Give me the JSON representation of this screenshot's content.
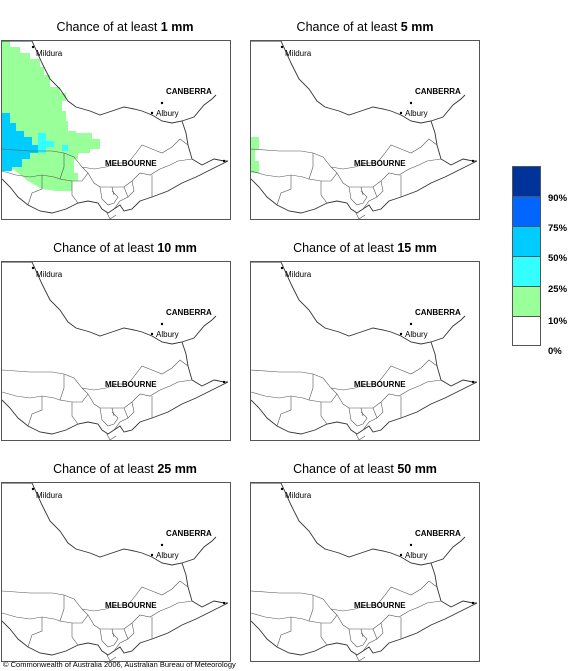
{
  "panels": [
    {
      "title_prefix": "Chance of at least ",
      "title_value": "1 mm",
      "places": {
        "mildura": "Mildura",
        "canberra": "CANBERRA",
        "albury": "Albury",
        "melbourne": "MELBOURNE"
      }
    },
    {
      "title_prefix": "Chance of at least ",
      "title_value": "5 mm",
      "places": {
        "mildura": "Mildura",
        "canberra": "CANBERRA",
        "albury": "Albury",
        "melbourne": "MELBOURNE"
      }
    },
    {
      "title_prefix": "Chance of at least ",
      "title_value": "10 mm",
      "places": {
        "mildura": "Mildura",
        "canberra": "CANBERRA",
        "albury": "Albury",
        "melbourne": "MELBOURNE"
      }
    },
    {
      "title_prefix": "Chance of at least ",
      "title_value": "15 mm",
      "places": {
        "mildura": "Mildura",
        "canberra": "CANBERRA",
        "albury": "Albury",
        "melbourne": "MELBOURNE"
      }
    },
    {
      "title_prefix": "Chance of at least ",
      "title_value": "25 mm",
      "places": {
        "mildura": "Mildura",
        "canberra": "CANBERRA",
        "albury": "Albury",
        "melbourne": "MELBOURNE"
      }
    },
    {
      "title_prefix": "Chance of at least ",
      "title_value": "50 mm",
      "places": {
        "mildura": "Mildura",
        "canberra": "CANBERRA",
        "albury": "Albury",
        "melbourne": "MELBOURNE"
      }
    }
  ],
  "legend": {
    "colors": [
      "#003399",
      "#0066ff",
      "#00ccff",
      "#33ffff",
      "#99ff99",
      "#ffffff"
    ],
    "labels": [
      "90%",
      "75%",
      "50%",
      "25%",
      "10%",
      "0%"
    ]
  },
  "footer": "© Commonwealth of Australia 2006, Australian Bureau of Meteorology"
}
